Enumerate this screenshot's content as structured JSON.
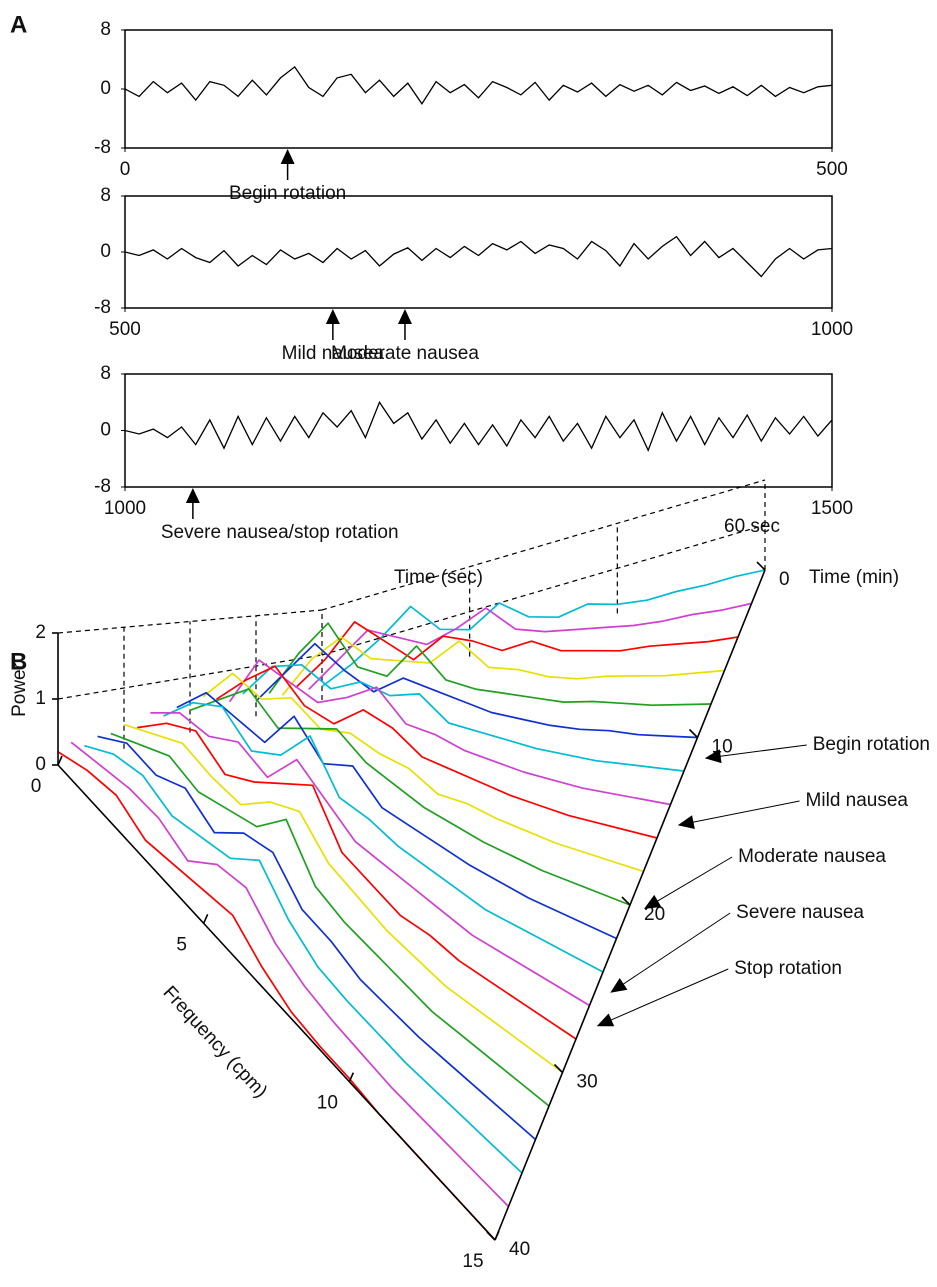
{
  "chart_data": [
    {
      "type": "line",
      "panel_label": "A",
      "x": [
        0,
        10,
        20,
        30,
        40,
        50,
        60,
        70,
        80,
        90,
        100,
        110,
        120,
        130,
        140,
        150,
        160,
        170,
        180,
        190,
        200,
        210,
        220,
        230,
        240,
        250,
        260,
        270,
        280,
        290,
        300,
        310,
        320,
        330,
        340,
        350,
        360,
        370,
        380,
        390,
        400,
        410,
        420,
        430,
        440,
        450,
        460,
        470,
        480,
        490,
        500
      ],
      "values": [
        0,
        -1,
        1,
        -0.5,
        0.8,
        -1.5,
        1,
        0.5,
        -1,
        1.2,
        -0.8,
        1.5,
        3,
        0.2,
        -1,
        1.5,
        2,
        -0.5,
        1.2,
        -1,
        0.8,
        -2,
        1,
        -0.5,
        0.6,
        -1.2,
        1,
        0.2,
        -0.8,
        0.9,
        -1.5,
        0.5,
        -0.4,
        0.8,
        -1,
        0.6,
        -0.3,
        0.5,
        -0.8,
        0.9,
        -0.2,
        0.4,
        -0.6,
        0.3,
        -0.9,
        0.5,
        -1,
        0.2,
        -0.5,
        0.3,
        0.5
      ],
      "color": "#000000",
      "xlim": [
        0,
        500
      ],
      "ylim": [
        -8,
        8
      ],
      "xticks": [
        0,
        500
      ],
      "yticks": [
        -8,
        0,
        8
      ],
      "annotations": [
        {
          "text": "Begin rotation",
          "x": 115
        }
      ]
    },
    {
      "type": "line",
      "x": [
        500,
        510,
        520,
        530,
        540,
        550,
        560,
        570,
        580,
        590,
        600,
        610,
        620,
        630,
        640,
        650,
        660,
        670,
        680,
        690,
        700,
        710,
        720,
        730,
        740,
        750,
        760,
        770,
        780,
        790,
        800,
        810,
        820,
        830,
        840,
        850,
        860,
        870,
        880,
        890,
        900,
        910,
        920,
        930,
        940,
        950,
        960,
        970,
        980,
        990,
        1000
      ],
      "values": [
        0,
        -0.5,
        0.3,
        -1,
        0.5,
        -0.8,
        -1.5,
        0.2,
        -2,
        -0.5,
        -1.8,
        0.3,
        -1,
        -0.2,
        -1.5,
        0.5,
        -1,
        0.2,
        -2,
        -0.3,
        0.6,
        -1.2,
        0.5,
        -0.8,
        0.8,
        -0.5,
        1.2,
        0.3,
        1.5,
        -0.2,
        1,
        0.5,
        -1,
        1.5,
        0.2,
        -2,
        1.2,
        -1,
        0.8,
        2.2,
        -0.5,
        1.5,
        -0.8,
        0.5,
        -1.5,
        -3.5,
        -1,
        0.5,
        -1,
        0.3,
        0.5
      ],
      "color": "#000000",
      "xlim": [
        500,
        1000
      ],
      "ylim": [
        -8,
        8
      ],
      "xticks": [
        500,
        1000
      ],
      "yticks": [
        -8,
        0,
        8
      ],
      "annotations": [
        {
          "text": "Mild nausea",
          "x": 647
        },
        {
          "text": "Moderate nausea",
          "x": 698
        }
      ]
    },
    {
      "type": "line",
      "xlabel": "Time (sec)",
      "scale_label": "60 sec",
      "x": [
        1000,
        1010,
        1020,
        1030,
        1040,
        1050,
        1060,
        1070,
        1080,
        1090,
        1100,
        1110,
        1120,
        1130,
        1140,
        1150,
        1160,
        1170,
        1180,
        1190,
        1200,
        1210,
        1220,
        1230,
        1240,
        1250,
        1260,
        1270,
        1280,
        1290,
        1300,
        1310,
        1320,
        1330,
        1340,
        1350,
        1360,
        1370,
        1380,
        1390,
        1400,
        1410,
        1420,
        1430,
        1440,
        1450,
        1460,
        1470,
        1480,
        1490,
        1500
      ],
      "values": [
        0,
        -0.5,
        0.2,
        -1,
        0.5,
        -2,
        1.5,
        -2.5,
        2,
        -2,
        1.8,
        -1.5,
        2,
        -1,
        2.5,
        0.5,
        2.8,
        -1,
        4,
        1,
        2.5,
        -1.2,
        1.5,
        -1.8,
        1,
        -2,
        0.8,
        -2.2,
        1.5,
        -1,
        2,
        -1.5,
        1,
        -2.5,
        2,
        -1,
        1.5,
        -2.8,
        2.5,
        -1.5,
        2,
        -2,
        1.8,
        -1,
        2.2,
        -1.5,
        1.8,
        -0.5,
        2,
        -0.8,
        1.5
      ],
      "color": "#000000",
      "xlim": [
        1000,
        1500
      ],
      "ylim": [
        -8,
        8
      ],
      "xticks": [
        1000,
        1500
      ],
      "yticks": [
        -8,
        0,
        8
      ],
      "annotations": [
        {
          "text": "Severe nausea/stop rotation",
          "x": 1048
        }
      ]
    },
    {
      "type": "waterfall",
      "panel_label": "B",
      "xlabel": "Frequency (cpm)",
      "ylabel": "Time (min)",
      "zlabel": "Power",
      "x": [
        0,
        1,
        2,
        3,
        4,
        5,
        6,
        7,
        8,
        9,
        10,
        11,
        12,
        13,
        14,
        15
      ],
      "y": [
        0,
        2,
        4,
        6,
        8,
        10,
        12,
        14,
        16,
        18,
        20,
        22,
        24,
        26,
        28,
        30,
        32,
        34,
        36,
        38,
        40
      ],
      "values": [
        [
          0.3,
          0.6,
          1.0,
          1.5,
          0.8,
          0.6,
          1.0,
          0.5,
          0.3,
          0.4,
          0.2,
          0.1,
          0.1,
          0.05,
          0.05,
          0
        ],
        [
          0.3,
          0.8,
          1.3,
          1.0,
          0.7,
          0.9,
          1.2,
          0.6,
          0.4,
          0.3,
          0.2,
          0.1,
          0.05,
          0.05,
          0,
          0
        ],
        [
          0.4,
          0.9,
          1.6,
          1.1,
          0.6,
          1.0,
          0.8,
          0.5,
          0.6,
          0.3,
          0.2,
          0.1,
          0.1,
          0.05,
          0,
          0
        ],
        [
          0.3,
          1.0,
          1.4,
          0.9,
          0.8,
          0.7,
          1.1,
          0.5,
          0.4,
          0.2,
          0.1,
          0.1,
          0.05,
          0,
          0,
          0
        ],
        [
          0.4,
          1.2,
          1.8,
          0.9,
          0.7,
          1.3,
          0.6,
          0.4,
          0.3,
          0.2,
          0.1,
          0.1,
          0.05,
          0,
          0,
          0
        ],
        [
          0.3,
          0.9,
          1.5,
          1.0,
          0.6,
          0.9,
          0.7,
          0.5,
          0.3,
          0.2,
          0.1,
          0.05,
          0.05,
          0,
          0,
          0
        ],
        [
          0.5,
          1.1,
          1.2,
          0.8,
          1.0,
          0.8,
          0.9,
          0.4,
          0.3,
          0.2,
          0.1,
          0.05,
          0,
          0,
          0,
          0
        ],
        [
          0.4,
          1.3,
          1.0,
          0.7,
          0.9,
          1.2,
          0.6,
          0.5,
          0.3,
          0.2,
          0.1,
          0.05,
          0,
          0,
          0,
          0
        ],
        [
          0.5,
          1.0,
          1.4,
          0.8,
          0.6,
          1.0,
          0.8,
          0.4,
          0.3,
          0.2,
          0.1,
          0.05,
          0,
          0,
          0,
          0
        ],
        [
          0.6,
          1.2,
          0.9,
          1.1,
          0.7,
          0.8,
          0.6,
          0.5,
          0.2,
          0.2,
          0.1,
          0.05,
          0,
          0,
          0,
          0
        ],
        [
          0.4,
          0.8,
          1.2,
          0.7,
          0.9,
          1.1,
          0.7,
          0.5,
          0.3,
          0.2,
          0.1,
          0.05,
          0,
          0,
          0,
          0
        ],
        [
          0.5,
          1.0,
          0.8,
          0.6,
          1.3,
          0.7,
          0.9,
          0.4,
          0.3,
          0.2,
          0.1,
          0.05,
          0,
          0,
          0,
          0
        ],
        [
          0.4,
          0.9,
          1.1,
          0.6,
          0.8,
          1.4,
          0.6,
          0.5,
          0.3,
          0.2,
          0.1,
          0,
          0,
          0,
          0,
          0
        ],
        [
          0.5,
          0.8,
          0.7,
          0.9,
          0.6,
          1.2,
          0.8,
          0.4,
          0.3,
          0.2,
          0.1,
          0,
          0,
          0,
          0,
          0
        ],
        [
          0.3,
          0.7,
          0.9,
          0.5,
          0.7,
          1.0,
          1.3,
          0.5,
          0.3,
          0.1,
          0.1,
          0,
          0,
          0,
          0,
          0
        ],
        [
          0.4,
          0.6,
          0.8,
          0.6,
          0.5,
          0.9,
          1.1,
          0.6,
          0.4,
          0.2,
          0.1,
          0,
          0,
          0,
          0,
          0
        ],
        [
          0.3,
          0.5,
          0.7,
          0.5,
          0.6,
          0.7,
          1.2,
          0.5,
          0.3,
          0.2,
          0.1,
          0,
          0,
          0,
          0,
          0
        ],
        [
          0.3,
          0.6,
          0.5,
          0.7,
          0.4,
          0.8,
          0.9,
          0.4,
          0.3,
          0.1,
          0.05,
          0,
          0,
          0,
          0,
          0
        ],
        [
          0.2,
          0.5,
          0.6,
          0.4,
          0.5,
          0.6,
          1.0,
          0.5,
          0.2,
          0.1,
          0.05,
          0,
          0,
          0,
          0,
          0
        ],
        [
          0.3,
          0.4,
          0.5,
          0.5,
          0.3,
          0.7,
          0.8,
          0.4,
          0.2,
          0.1,
          0.05,
          0,
          0,
          0,
          0,
          0
        ],
        [
          0.2,
          0.4,
          0.5,
          0.3,
          0.4,
          0.5,
          0.6,
          0.3,
          0.1,
          0.05,
          0.05,
          0,
          0,
          0,
          0,
          0
        ]
      ],
      "line_colors": [
        "#00bcd4",
        "#d040d0",
        "#ff0000",
        "#e8e000",
        "#20a020",
        "#1030d0"
      ],
      "xlim": [
        0,
        15
      ],
      "ylim": [
        0,
        40
      ],
      "zlim": [
        0,
        2
      ],
      "xticks": [
        0,
        5,
        10,
        15
      ],
      "yticks": [
        0,
        10,
        20,
        30,
        40
      ],
      "zticks": [
        0,
        1,
        2
      ],
      "grid": true,
      "annotations": [
        {
          "text": "Begin rotation",
          "y": 11
        },
        {
          "text": "Mild nausea",
          "y": 15
        },
        {
          "text": "Moderate nausea",
          "y": 20
        },
        {
          "text": "Severe nausea",
          "y": 25
        },
        {
          "text": "Stop rotation",
          "y": 27
        }
      ]
    }
  ]
}
